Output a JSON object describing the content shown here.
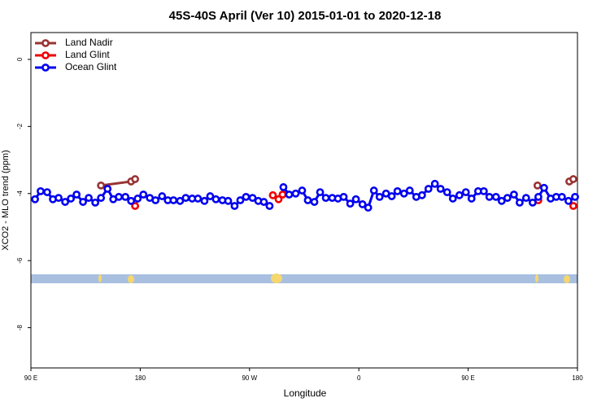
{
  "chart_data": {
    "type": "line",
    "title": "45S-40S April (Ver 10)   2015-01-01 to 2020-12-18",
    "x_label": "Longitude",
    "y_label": "XCO2 - MLO trend (ppm)",
    "xlim": [
      90,
      540
    ],
    "ylim": [
      -9.2,
      0.8
    ],
    "xticks": [
      {
        "value": 90,
        "label": "90 E"
      },
      {
        "value": 180,
        "label": "180"
      },
      {
        "value": 270,
        "label": "90 W"
      },
      {
        "value": 360,
        "label": "0"
      },
      {
        "value": 450,
        "label": "90 E"
      },
      {
        "value": 540,
        "label": "180"
      }
    ],
    "yticks": [
      0,
      -2,
      -4,
      -6,
      -8
    ],
    "legend_position": "top-left",
    "series": [
      {
        "name": "Land Nadir",
        "color": "#993333",
        "x": [
          147.7,
          172.5,
          175.8,
          null,
          507.1,
          null,
          533.3,
          536.6
        ],
        "values": [
          -3.76,
          -3.64,
          -3.57,
          null,
          -3.76,
          null,
          -3.64,
          -3.57
        ]
      },
      {
        "name": "Land Glint",
        "color": "#ee0000",
        "x": [
          175.8,
          null,
          289.2,
          293.9,
          297.2,
          null,
          507.8,
          null,
          536.6
        ],
        "values": [
          -4.37,
          null,
          -4.05,
          -4.17,
          -4.03,
          null,
          -4.2,
          null,
          -4.37
        ]
      },
      {
        "name": "Ocean Glint",
        "color": "#0000ee",
        "x": [
          93.4,
          98.0,
          103.4,
          108.1,
          112.8,
          118.2,
          122.9,
          127.6,
          132.9,
          137.6,
          143.0,
          147.7,
          153.1,
          157.8,
          162.4,
          167.8,
          172.5,
          177.9,
          182.6,
          187.9,
          192.6,
          198.0,
          202.7,
          207.4,
          212.8,
          217.5,
          222.8,
          227.5,
          232.9,
          237.6,
          242.3,
          247.7,
          252.4,
          257.7,
          262.4,
          267.1,
          272.5,
          277.2,
          281.8,
          286.5,
          null,
          297.9,
          302.6,
          308.0,
          313.3,
          318.0,
          323.4,
          328.1,
          332.8,
          338.1,
          342.8,
          347.5,
          352.9,
          357.6,
          363.0,
          367.7,
          372.4,
          377.1,
          382.4,
          387.1,
          391.8,
          397.2,
          401.9,
          407.3,
          412.0,
          417.3,
          422.6,
          427.3,
          432.7,
          437.4,
          442.8,
          448.1,
          452.8,
          458.2,
          462.9,
          467.5,
          472.9,
          477.6,
          482.3,
          487.7,
          492.4,
          497.7,
          503.1,
          507.8,
          512.5,
          517.9,
          522.5,
          527.2,
          532.6,
          538.0
        ],
        "values": [
          -4.17,
          -3.93,
          -3.96,
          -4.17,
          -4.13,
          -4.25,
          -4.15,
          -4.03,
          -4.25,
          -4.13,
          -4.27,
          -4.13,
          -3.86,
          -4.17,
          -4.1,
          -4.1,
          -4.22,
          -4.15,
          -4.03,
          -4.13,
          -4.2,
          -4.08,
          -4.2,
          -4.2,
          -4.22,
          -4.13,
          -4.15,
          -4.15,
          -4.22,
          -4.08,
          -4.17,
          -4.2,
          -4.22,
          -4.37,
          -4.2,
          -4.1,
          -4.13,
          -4.22,
          -4.25,
          -4.37,
          null,
          -3.81,
          -4.03,
          -4.0,
          -3.91,
          -4.2,
          -4.25,
          -3.96,
          -4.13,
          -4.13,
          -4.15,
          -4.1,
          -4.3,
          -4.17,
          -4.32,
          -4.42,
          -3.91,
          -4.1,
          -4.0,
          -4.08,
          -3.93,
          -4.0,
          -3.91,
          -4.1,
          -4.05,
          -3.86,
          -3.71,
          -3.86,
          -3.96,
          -4.15,
          -4.05,
          -3.96,
          -4.15,
          -3.93,
          -3.93,
          -4.1,
          -4.1,
          -4.22,
          -4.13,
          -4.03,
          -4.27,
          -4.13,
          -4.27,
          -4.1,
          -3.83,
          -4.15,
          -4.1,
          -4.1,
          -4.22,
          -4.1
        ]
      }
    ]
  }
}
